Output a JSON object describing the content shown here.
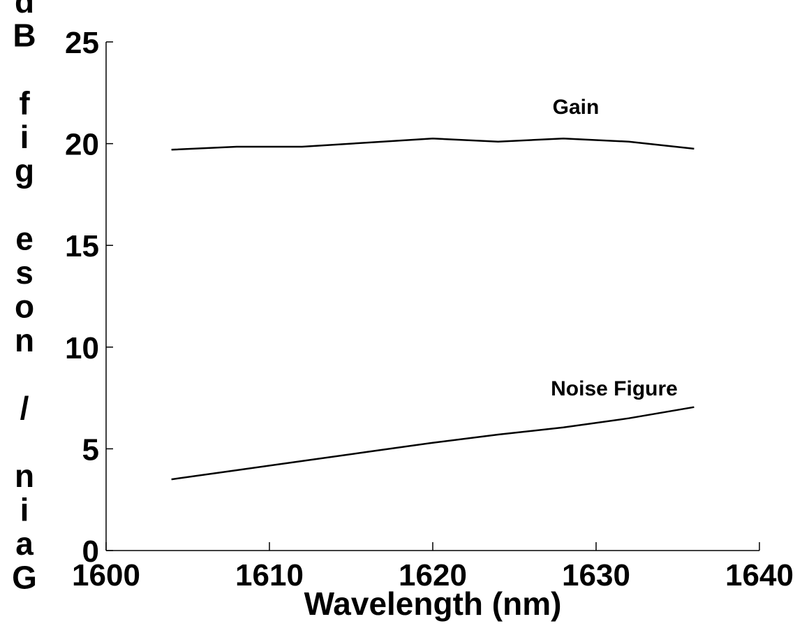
{
  "chart_data": {
    "type": "line",
    "title": "",
    "xlabel": "Wavelength (nm)",
    "ylabel": "Gain / Noise Figure (dB)",
    "ylabel_visible": "dB fig eson / niaG",
    "xlim": [
      1600,
      1640
    ],
    "ylim": [
      0,
      25
    ],
    "xticks": [
      1600,
      1610,
      1620,
      1630,
      1640
    ],
    "yticks": [
      0,
      5,
      10,
      15,
      20,
      25
    ],
    "grid": false,
    "series": [
      {
        "name": "Gain",
        "x": [
          1604,
          1608,
          1612,
          1616,
          1620,
          1624,
          1628,
          1632,
          1636
        ],
        "y": [
          19.7,
          19.85,
          19.85,
          20.05,
          20.25,
          20.1,
          20.25,
          20.1,
          19.75
        ]
      },
      {
        "name": "Noise Figure",
        "x": [
          1604,
          1608,
          1612,
          1616,
          1620,
          1624,
          1628,
          1632,
          1636
        ],
        "y": [
          3.5,
          3.95,
          4.4,
          4.85,
          5.3,
          5.7,
          6.05,
          6.5,
          7.05
        ]
      }
    ],
    "annotations": [
      {
        "text": "Gain",
        "series": "Gain"
      },
      {
        "text": "Noise Figure",
        "series": "Noise Figure"
      }
    ]
  }
}
